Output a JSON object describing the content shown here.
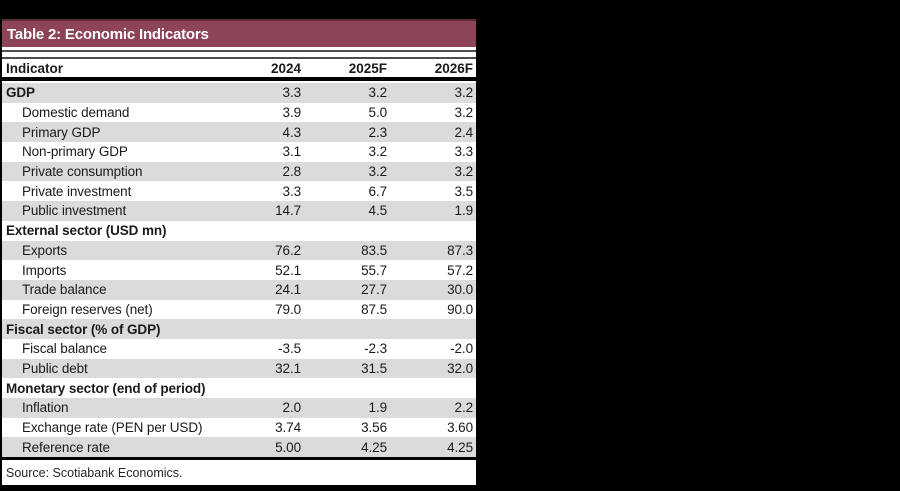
{
  "colors": {
    "canvas_bg": "#000000",
    "title_bar_bg": "#8D4457",
    "title_bar_text": "#FFFFFF",
    "row_alt_bg": "#DBDBDB",
    "rule_gray": "#4D4D4D",
    "text": "#1A1A1A"
  },
  "chart_data": {
    "type": "table",
    "title": "Table 2: Economic Indicators",
    "columns": [
      "Indicator",
      "2024",
      "2025F",
      "2026F"
    ],
    "rows": [
      {
        "label": "GDP",
        "style": "section",
        "values": [
          "3.3",
          "3.2",
          "3.2"
        ]
      },
      {
        "label": "Domestic demand",
        "style": "sub",
        "values": [
          "3.9",
          "5.0",
          "3.2"
        ]
      },
      {
        "label": "Primary GDP",
        "style": "sub",
        "values": [
          "4.3",
          "2.3",
          "2.4"
        ]
      },
      {
        "label": "Non-primary GDP",
        "style": "sub",
        "values": [
          "3.1",
          "3.2",
          "3.3"
        ]
      },
      {
        "label": "Private consumption",
        "style": "sub",
        "values": [
          "2.8",
          "3.2",
          "3.2"
        ]
      },
      {
        "label": "Private investment",
        "style": "sub",
        "values": [
          "3.3",
          "6.7",
          "3.5"
        ]
      },
      {
        "label": "Public investment",
        "style": "sub",
        "values": [
          "14.7",
          "4.5",
          "1.9"
        ]
      },
      {
        "label": "External sector (USD mn)",
        "style": "section",
        "values": [
          "",
          "",
          ""
        ]
      },
      {
        "label": "Exports",
        "style": "sub",
        "values": [
          "76.2",
          "83.5",
          "87.3"
        ]
      },
      {
        "label": "Imports",
        "style": "sub",
        "values": [
          "52.1",
          "55.7",
          "57.2"
        ]
      },
      {
        "label": "Trade balance",
        "style": "sub",
        "values": [
          "24.1",
          "27.7",
          "30.0"
        ]
      },
      {
        "label": "Foreign reserves (net)",
        "style": "sub",
        "values": [
          "79.0",
          "87.5",
          "90.0"
        ]
      },
      {
        "label": "Fiscal sector (% of GDP)",
        "style": "section",
        "values": [
          "",
          "",
          ""
        ]
      },
      {
        "label": "Fiscal balance",
        "style": "sub",
        "values": [
          "-3.5",
          "-2.3",
          "-2.0"
        ]
      },
      {
        "label": "Public debt",
        "style": "sub",
        "values": [
          "32.1",
          "31.5",
          "32.0"
        ]
      },
      {
        "label": "Monetary sector (end of period)",
        "style": "section",
        "values": [
          "",
          "",
          ""
        ]
      },
      {
        "label": "Inflation",
        "style": "sub",
        "values": [
          "2.0",
          "1.9",
          "2.2"
        ]
      },
      {
        "label": "Exchange rate (PEN per USD)",
        "style": "sub",
        "values": [
          "3.74",
          "3.56",
          "3.60"
        ]
      },
      {
        "label": "Reference rate",
        "style": "sub",
        "values": [
          "5.00",
          "4.25",
          "4.25"
        ]
      }
    ],
    "source": "Source: Scotiabank Economics."
  }
}
